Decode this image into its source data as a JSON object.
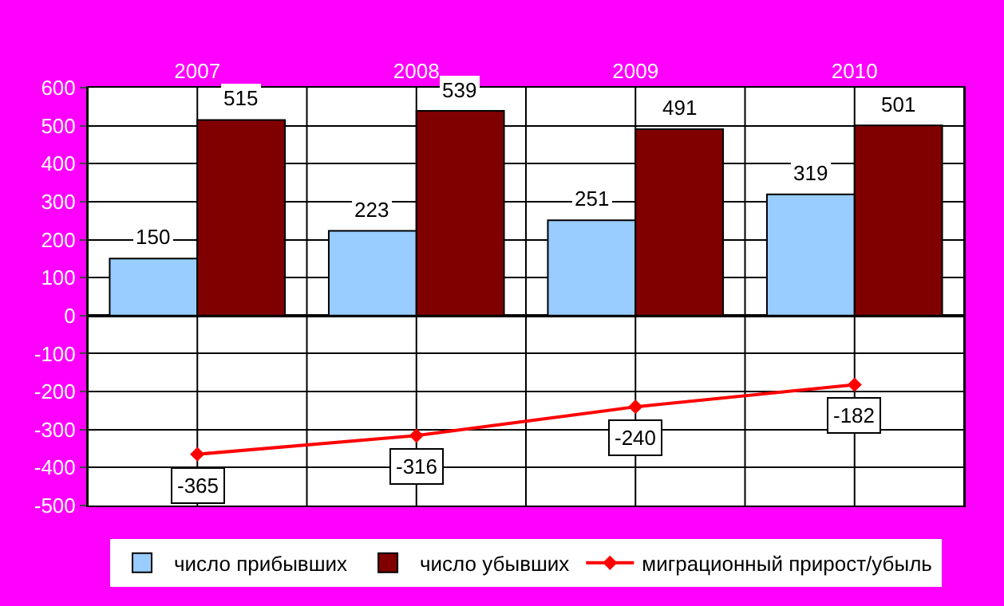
{
  "chart_data": {
    "type": "bar",
    "categories": [
      "2007",
      "2008",
      "2009",
      "2010"
    ],
    "series": [
      {
        "name": "число прибывших",
        "color": "#99ccff",
        "values": [
          150,
          223,
          251,
          319
        ]
      },
      {
        "name": "число убывших",
        "color": "#800000",
        "values": [
          515,
          539,
          491,
          501
        ]
      },
      {
        "name": "миграционный прирост/убыль",
        "type": "line",
        "color": "#ff0000",
        "marker": "diamond",
        "values": [
          -365,
          -316,
          -240,
          -182
        ]
      }
    ],
    "ylim": [
      -500,
      600
    ],
    "yticks": [
      -500,
      -400,
      -300,
      -200,
      -100,
      0,
      100,
      200,
      300,
      400,
      500,
      600
    ],
    "grid": true,
    "legend": "bottom",
    "data_labels": true
  }
}
